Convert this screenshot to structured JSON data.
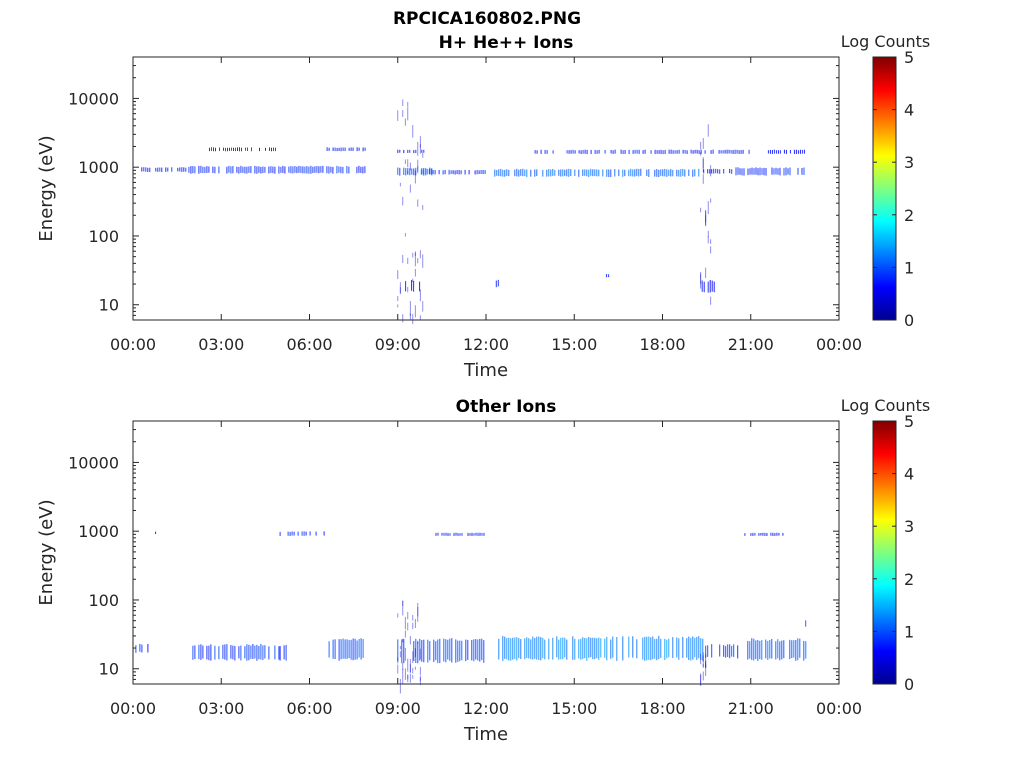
{
  "figure_title": "RPCICA160802.PNG",
  "chart_data": [
    {
      "type": "heatmap",
      "title": "H+ He++ Ions",
      "xlabel": "Time",
      "ylabel": "Energy (eV)",
      "x_ticks": [
        "00:00",
        "03:00",
        "06:00",
        "09:00",
        "12:00",
        "15:00",
        "18:00",
        "21:00",
        "00:00"
      ],
      "xlim_hours": [
        0,
        24
      ],
      "y_scale": "log",
      "ylim": [
        6,
        40000
      ],
      "y_ticks": [
        {
          "value": 10,
          "label": "10"
        },
        {
          "value": 100,
          "label": "100"
        },
        {
          "value": 1000,
          "label": "1000"
        },
        {
          "value": 10000,
          "label": "10000"
        }
      ],
      "colorbar": {
        "label": "Log Counts",
        "min": 0,
        "max": 5,
        "ticks": [
          "0",
          "1",
          "2",
          "3",
          "4",
          "5"
        ],
        "colormap": "jet"
      },
      "bands": [
        {
          "t_start": 0.3,
          "t_end": 1.8,
          "e_low": 850,
          "e_high": 1000,
          "log_counts": 0.6
        },
        {
          "t_start": 1.9,
          "t_end": 7.9,
          "e_low": 800,
          "e_high": 1050,
          "log_counts": 0.65
        },
        {
          "t_start": 2.6,
          "t_end": 5.0,
          "e_low": 1700,
          "e_high": 1950,
          "log_counts": 0.6
        },
        {
          "t_start": 6.6,
          "t_end": 7.9,
          "e_low": 1700,
          "e_high": 1950,
          "log_counts": 0.6
        },
        {
          "t_start": 9.0,
          "t_end": 10.2,
          "e_low": 750,
          "e_high": 1000,
          "log_counts": 0.8
        },
        {
          "t_start": 9.0,
          "t_end": 9.9,
          "e_low": 1600,
          "e_high": 1800,
          "log_counts": 0.5
        },
        {
          "t_start": 9.8,
          "t_end": 10.2,
          "e_low": 780,
          "e_high": 950,
          "log_counts": 1.0
        },
        {
          "t_start": 10.2,
          "t_end": 12.1,
          "e_low": 780,
          "e_high": 920,
          "log_counts": 0.6
        },
        {
          "t_start": 12.3,
          "t_end": 19.3,
          "e_low": 720,
          "e_high": 950,
          "log_counts": 0.95
        },
        {
          "t_start": 13.6,
          "t_end": 21.0,
          "e_low": 1550,
          "e_high": 1800,
          "log_counts": 0.6
        },
        {
          "t_start": 19.4,
          "t_end": 20.4,
          "e_low": 800,
          "e_high": 950,
          "log_counts": 0.6
        },
        {
          "t_start": 20.5,
          "t_end": 22.9,
          "e_low": 750,
          "e_high": 1000,
          "log_counts": 0.65
        },
        {
          "t_start": 21.6,
          "t_end": 22.9,
          "e_low": 1550,
          "e_high": 1800,
          "log_counts": 0.5
        },
        {
          "t_start": 9.2,
          "t_end": 9.8,
          "e_low": 15,
          "e_high": 23,
          "log_counts": 0.5
        },
        {
          "t_start": 12.35,
          "t_end": 12.45,
          "e_low": 18,
          "e_high": 23,
          "log_counts": 0.6
        },
        {
          "t_start": 16.1,
          "t_end": 16.2,
          "e_low": 25,
          "e_high": 28,
          "log_counts": 0.5
        },
        {
          "t_start": 19.35,
          "t_end": 19.8,
          "e_low": 15,
          "e_high": 23,
          "log_counts": 0.5
        }
      ],
      "spikes": [
        {
          "t_start": 9.0,
          "t_end": 9.9,
          "e_low": 7,
          "e_high": 10000,
          "log_counts": 0.4
        },
        {
          "t_start": 19.3,
          "t_end": 19.7,
          "e_low": 7,
          "e_high": 6000,
          "log_counts": 0.4
        }
      ]
    },
    {
      "type": "heatmap",
      "title": "Other Ions",
      "xlabel": "Time",
      "ylabel": "Energy (eV)",
      "x_ticks": [
        "00:00",
        "03:00",
        "06:00",
        "09:00",
        "12:00",
        "15:00",
        "18:00",
        "21:00",
        "00:00"
      ],
      "xlim_hours": [
        0,
        24
      ],
      "y_scale": "log",
      "ylim": [
        6,
        40000
      ],
      "y_ticks": [
        {
          "value": 10,
          "label": "10"
        },
        {
          "value": 100,
          "label": "100"
        },
        {
          "value": 1000,
          "label": "1000"
        },
        {
          "value": 10000,
          "label": "10000"
        }
      ],
      "colorbar": {
        "label": "Log Counts",
        "min": 0,
        "max": 5,
        "ticks": [
          "0",
          "1",
          "2",
          "3",
          "4",
          "5"
        ],
        "colormap": "jet"
      },
      "bands": [
        {
          "t_start": 0.1,
          "t_end": 0.6,
          "e_low": 17,
          "e_high": 23,
          "log_counts": 0.6
        },
        {
          "t_start": 0.7,
          "t_end": 0.8,
          "e_low": 900,
          "e_high": 1000,
          "log_counts": 0.5
        },
        {
          "t_start": 1.9,
          "t_end": 5.0,
          "e_low": 13,
          "e_high": 23,
          "log_counts": 0.7
        },
        {
          "t_start": 5.0,
          "t_end": 5.3,
          "e_low": 13,
          "e_high": 23,
          "log_counts": 0.6
        },
        {
          "t_start": 5.0,
          "t_end": 6.5,
          "e_low": 850,
          "e_high": 1000,
          "log_counts": 0.6
        },
        {
          "t_start": 6.6,
          "t_end": 7.9,
          "e_low": 13,
          "e_high": 28,
          "log_counts": 0.85
        },
        {
          "t_start": 9.0,
          "t_end": 12.0,
          "e_low": 12,
          "e_high": 28,
          "log_counts": 0.8
        },
        {
          "t_start": 10.3,
          "t_end": 12.0,
          "e_low": 850,
          "e_high": 950,
          "log_counts": 0.6
        },
        {
          "t_start": 12.3,
          "t_end": 19.4,
          "e_low": 13,
          "e_high": 30,
          "log_counts": 1.1
        },
        {
          "t_start": 19.4,
          "t_end": 20.6,
          "e_low": 14,
          "e_high": 23,
          "log_counts": 0.7
        },
        {
          "t_start": 20.8,
          "t_end": 22.1,
          "e_low": 850,
          "e_high": 950,
          "log_counts": 0.5
        },
        {
          "t_start": 20.9,
          "t_end": 22.9,
          "e_low": 13,
          "e_high": 28,
          "log_counts": 0.9
        },
        {
          "t_start": 22.8,
          "t_end": 22.9,
          "e_low": 40,
          "e_high": 52,
          "log_counts": 0.8
        }
      ],
      "spikes": [
        {
          "t_start": 9.0,
          "t_end": 9.8,
          "e_low": 7,
          "e_high": 100,
          "log_counts": 0.4
        },
        {
          "t_start": 19.3,
          "t_end": 19.5,
          "e_low": 8,
          "e_high": 20,
          "log_counts": 0.4
        }
      ]
    }
  ]
}
